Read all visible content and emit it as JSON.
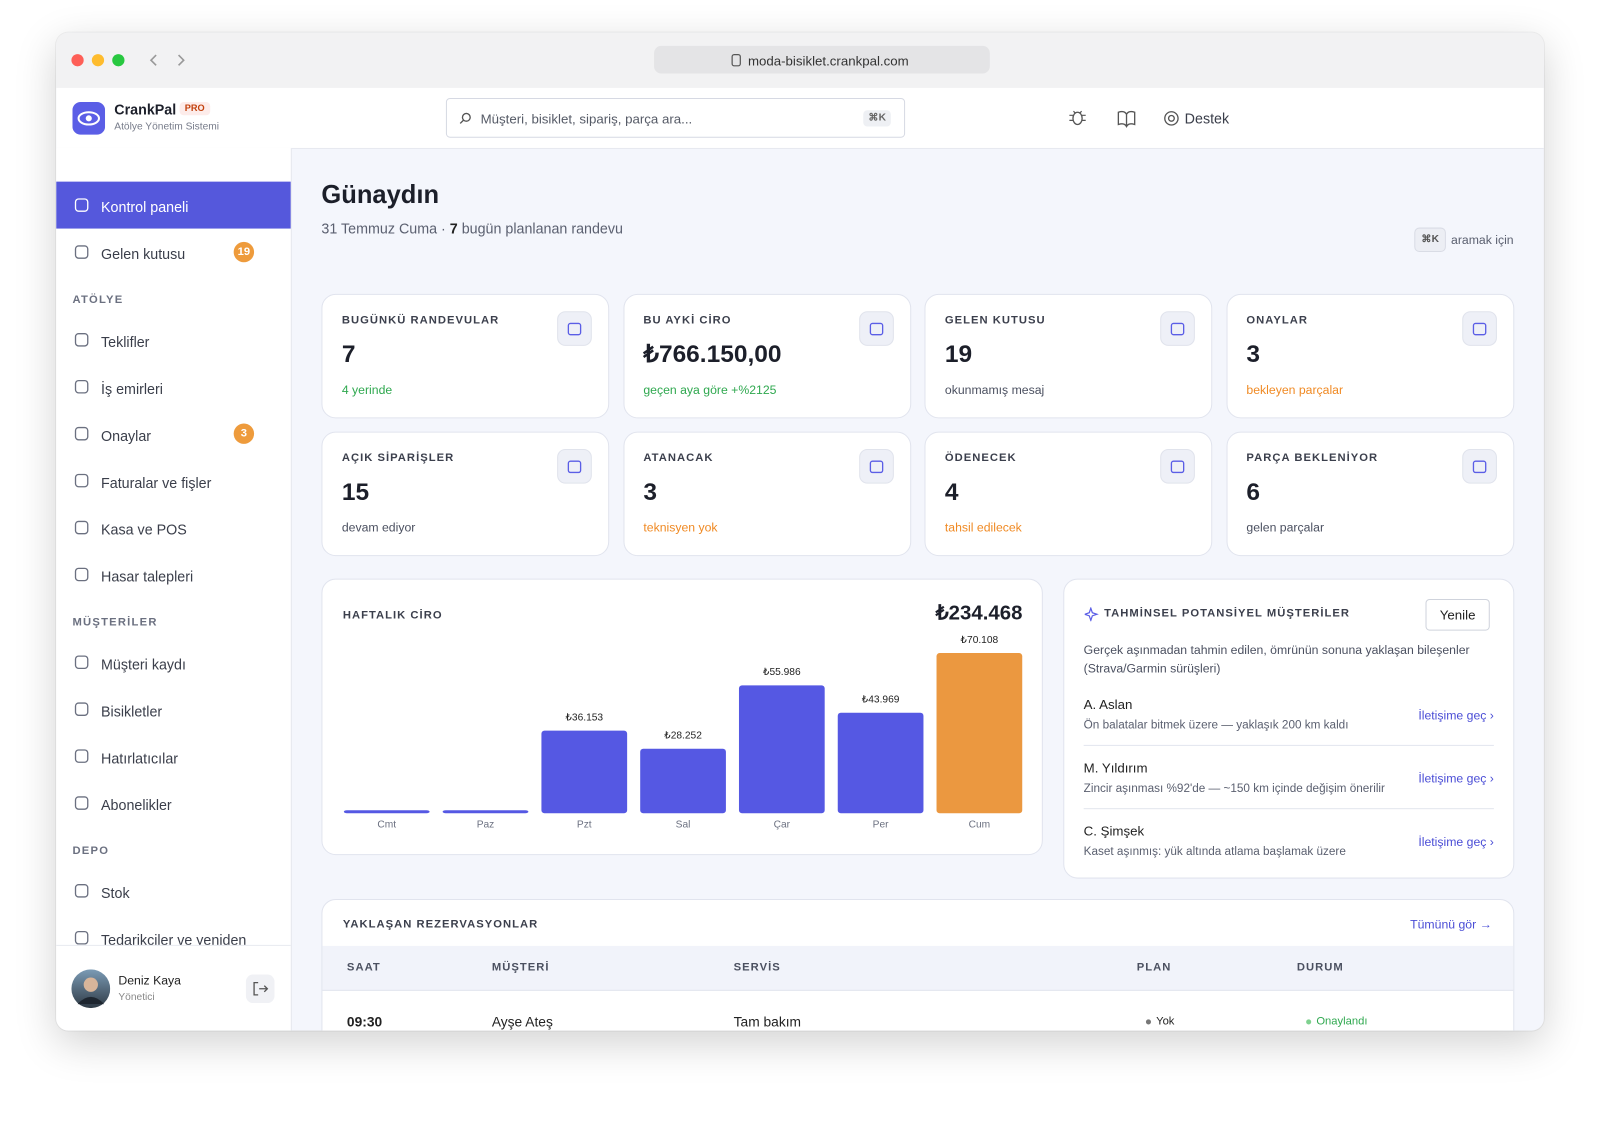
{
  "browser": {
    "url": "moda-bisiklet.crankpal.com"
  },
  "header": {
    "brand": "CrankPal",
    "badge": "PRO",
    "subtitle": "Atölye Yönetim Sistemi",
    "search_placeholder": "Müşteri, bisiklet, sipariş, parça ara...",
    "search_shortcut": "⌘K",
    "support": "Destek"
  },
  "sidebar": {
    "nav": [
      {
        "label": "Kontrol paneli",
        "active": true
      },
      {
        "label": "Gelen kutusu",
        "badge": 19
      }
    ],
    "sections": [
      {
        "title": "ATÖLYE",
        "items": [
          {
            "label": "Teklifler"
          },
          {
            "label": "İş emirleri"
          },
          {
            "label": "Onaylar",
            "badge": 3
          },
          {
            "label": "Faturalar ve fişler"
          },
          {
            "label": "Kasa ve POS"
          },
          {
            "label": "Hasar talepleri"
          }
        ]
      },
      {
        "title": "MÜŞTERİLER",
        "items": [
          {
            "label": "Müşteri kaydı"
          },
          {
            "label": "Bisikletler"
          },
          {
            "label": "Hatırlatıcılar"
          },
          {
            "label": "Abonelikler"
          }
        ]
      },
      {
        "title": "DEPO",
        "items": [
          {
            "label": "Stok"
          },
          {
            "label": "Tedarikçiler ve yeniden sipariş"
          }
        ]
      }
    ],
    "user": {
      "name": "Deniz Kaya",
      "role": "Yönetici"
    }
  },
  "main": {
    "greeting": "Günaydın",
    "date": "31 Temmuz Cuma ·",
    "count": 7,
    "date_suffix": "bugün planlanan randevu",
    "shortcut": "⌘K",
    "shortcut_text": "aramak için",
    "stats": [
      {
        "label": "BUGÜNKÜ RANDEVULAR",
        "value": "7",
        "note": "4 yerinde",
        "note_color": "#2fa84f"
      },
      {
        "label": "BU AYKİ CİRO",
        "value": "₺766.150,00",
        "note": "geçen aya göre +%2125",
        "note_color": "#2fa84f"
      },
      {
        "label": "GELEN KUTUSU",
        "value": "19",
        "note": "okunmamış mesaj",
        "note_color": "#4b5060"
      },
      {
        "label": "ONAYLAR",
        "value": "3",
        "note": "bekleyen parçalar",
        "note_color": "#f08a24"
      },
      {
        "label": "AÇIK SİPARİŞLER",
        "value": "15",
        "note": "devam ediyor",
        "note_color": "#4b5060"
      },
      {
        "label": "ATANACAK",
        "value": "3",
        "note": "teknisyen yok",
        "note_color": "#f08a24"
      },
      {
        "label": "ÖDENECEK",
        "value": "4",
        "note": "tahsil edilecek",
        "note_color": "#f08a24"
      },
      {
        "label": "PARÇA BEKLENİYOR",
        "value": "6",
        "note": "gelen parçalar",
        "note_color": "#4b5060"
      }
    ],
    "predictive": {
      "title": "TAHMİNSEL POTANSİYEL MÜŞTERİLER",
      "button": "Yenile",
      "description": "Gerçek aşınmadan tahmin edilen, ömrünün sonuna yaklaşan bileşenler (Strava/Garmin sürüşleri)",
      "customers": [
        {
          "name": "A. Aslan",
          "detail": "Ön balatalar bitmek üzere — yaklaşık 200 km kaldı",
          "action": "İletişime geç ›"
        },
        {
          "name": "M. Yıldırım",
          "detail": "Zincir aşınması %92'de — ~150 km içinde değişim önerilir",
          "action": "İletişime geç ›"
        },
        {
          "name": "C. Şimşek",
          "detail": "Kaset aşınmış: yük altında atlama başlamak üzere",
          "action": "İletişime geç ›"
        }
      ]
    },
    "reservations": {
      "title": "YAKLAŞAN REZERVASYONLAR",
      "link": "Tümünü gör →",
      "columns": [
        "SAAT",
        "MÜŞTERİ",
        "SERVİS",
        "PLAN",
        "DURUM"
      ],
      "rows": [
        [
          "09:30",
          "Ayşe Ateş",
          "Tam bakım",
          "Yok",
          "Onaylandı"
        ]
      ]
    }
  },
  "chart_data": {
    "type": "bar",
    "title": "HAFTALIK CİRO",
    "total": "₺234.468",
    "categories": [
      "Cmt",
      "Paz",
      "Pzt",
      "Sal",
      "Çar",
      "Per",
      "Cum"
    ],
    "values": [
      0,
      0,
      36153,
      28252,
      55986,
      43969,
      70108
    ],
    "value_labels": [
      null,
      null,
      "₺36.153",
      "₺28.252",
      "₺55.986",
      "₺43.969",
      "₺70.108"
    ],
    "colors": [
      "#5558e3",
      "#5558e3",
      "#5558e3",
      "#5558e3",
      "#5558e3",
      "#5558e3",
      "#eb9840"
    ]
  }
}
